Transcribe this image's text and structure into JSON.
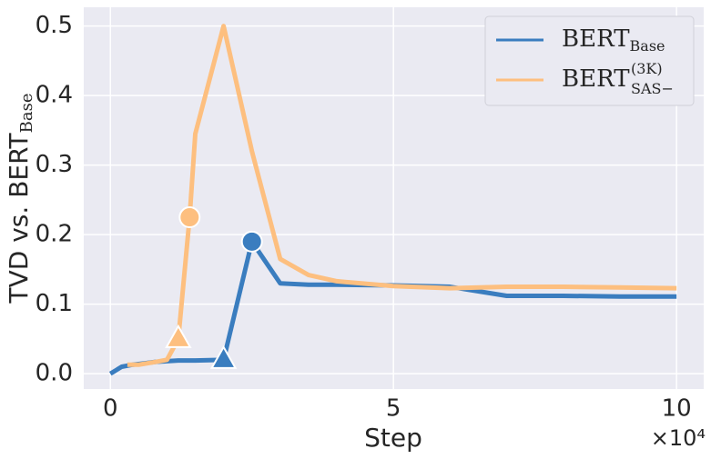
{
  "chart_data": {
    "type": "line",
    "x_label": "Step",
    "x_scale_label": "×10⁴",
    "y_label": "TVD vs. BERT",
    "y_label_subscript": "Base",
    "xlim": [
      -0.47,
      10.48
    ],
    "xticks": [
      0,
      5,
      10
    ],
    "ylim": [
      -0.022,
      0.527
    ],
    "yticks": [
      {
        "value": 0,
        "label": "0.0"
      },
      0.1,
      0.2,
      0.3,
      0.4,
      0.5
    ],
    "grid": true,
    "legend": "upper right",
    "series": [
      {
        "name": "BERT",
        "subscript": "Base",
        "color": "#3a7dbf",
        "x": [
          0,
          0.2,
          0.4,
          0.6,
          0.8,
          1.0,
          1.2,
          1.5,
          2.0,
          2.5,
          3.0,
          3.5,
          4.0,
          5.0,
          6.0,
          7.0,
          8.0,
          9.0,
          10.0
        ],
        "values": [
          0,
          0.01,
          0.013,
          0.015,
          0.017,
          0.018,
          0.019,
          0.019,
          0.02,
          0.19,
          0.13,
          0.128,
          0.128,
          0.127,
          0.125,
          0.112,
          0.112,
          0.111,
          0.111
        ],
        "markers": [
          {
            "x": 2.0,
            "y": 0.02,
            "shape": "triangle"
          },
          {
            "x": 2.5,
            "y": 0.19,
            "shape": "circle"
          }
        ]
      },
      {
        "name": "BERT",
        "subscript": "SAS−",
        "superscript": "(3K)",
        "color": "#fdbf7f",
        "x": [
          0.3,
          0.5,
          0.8,
          1.0,
          1.2,
          1.4,
          1.5,
          2.0,
          2.5,
          3.0,
          3.5,
          4.0,
          5.0,
          6.0,
          7.0,
          8.0,
          9.0,
          10.0
        ],
        "values": [
          0.013,
          0.013,
          0.017,
          0.02,
          0.05,
          0.225,
          0.345,
          0.5,
          0.32,
          0.165,
          0.142,
          0.133,
          0.126,
          0.123,
          0.125,
          0.125,
          0.124,
          0.123
        ],
        "markers": [
          {
            "x": 1.2,
            "y": 0.05,
            "shape": "triangle"
          },
          {
            "x": 1.4,
            "y": 0.225,
            "shape": "circle"
          }
        ]
      }
    ]
  }
}
